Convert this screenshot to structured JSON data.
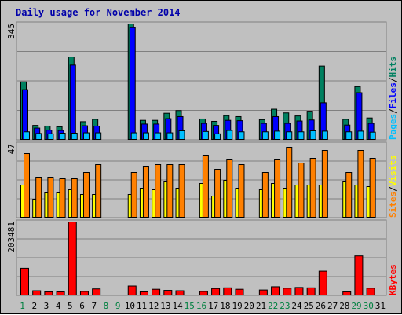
{
  "chart_data": [
    {
      "type": "bar",
      "title": "Daily usage for November 2014",
      "panel": "pages-files-hits",
      "ylabel_max": "345",
      "legend": [
        "Pages",
        "/",
        "Files",
        "/",
        "Hits"
      ],
      "legend_colors": [
        "#00c0ff",
        "#000000",
        "#0000ff",
        "#000000",
        "#008060"
      ],
      "ymax": 345,
      "categories": [
        "1",
        "2",
        "3",
        "4",
        "5",
        "6",
        "7",
        "8",
        "9",
        "10",
        "11",
        "12",
        "13",
        "14",
        "15",
        "16",
        "17",
        "18",
        "19",
        "20",
        "21",
        "22",
        "23",
        "24",
        "25",
        "26",
        "27",
        "28",
        "29",
        "30",
        "31"
      ],
      "series": [
        {
          "name": "Hits",
          "color": "#008060",
          "values": [
            173,
            44,
            42,
            40,
            247,
            55,
            62,
            0,
            0,
            345,
            59,
            59,
            80,
            88,
            0,
            63,
            56,
            73,
            70,
            0,
            61,
            92,
            81,
            72,
            86,
            220,
            0,
            62,
            159,
            66,
            0
          ]
        },
        {
          "name": "Files",
          "color": "#0000ff",
          "values": [
            150,
            36,
            30,
            29,
            223,
            43,
            42,
            0,
            0,
            334,
            48,
            48,
            64,
            70,
            0,
            50,
            44,
            59,
            58,
            0,
            50,
            70,
            50,
            57,
            60,
            111,
            0,
            45,
            141,
            50,
            0
          ]
        },
        {
          "name": "Pages",
          "color": "#00c0ff",
          "values": [
            25,
            20,
            19,
            21,
            21,
            22,
            22,
            0,
            0,
            22,
            22,
            22,
            22,
            28,
            0,
            26,
            19,
            29,
            25,
            0,
            25,
            27,
            25,
            25,
            28,
            27,
            0,
            25,
            27,
            24,
            0
          ]
        }
      ]
    },
    {
      "type": "bar",
      "panel": "visits-sites",
      "ylabel_max": "47",
      "legend": [
        "Sites",
        "/",
        "Visits"
      ],
      "legend_colors": [
        "#ff8000",
        "#000000",
        "#ffff00"
      ],
      "ymax": 47,
      "categories": [
        "1",
        "2",
        "3",
        "4",
        "5",
        "6",
        "7",
        "8",
        "9",
        "10",
        "11",
        "12",
        "13",
        "14",
        "15",
        "16",
        "17",
        "18",
        "19",
        "20",
        "21",
        "22",
        "23",
        "24",
        "25",
        "26",
        "27",
        "28",
        "29",
        "30",
        "31"
      ],
      "series": [
        {
          "name": "Visits",
          "color": "#ffff00",
          "values": [
            21,
            12,
            16,
            16,
            18,
            15,
            15,
            0,
            0,
            15,
            19,
            18,
            23,
            19,
            0,
            22,
            14,
            24,
            19,
            0,
            18,
            22,
            19,
            21,
            21,
            21,
            0,
            23,
            21,
            20,
            0
          ]
        },
        {
          "name": "Sites",
          "color": "#ff8000",
          "values": [
            41,
            26,
            26,
            25,
            25,
            29,
            34,
            0,
            0,
            29,
            33,
            34,
            34,
            34,
            0,
            40,
            31,
            37,
            34,
            0,
            29,
            37,
            45,
            35,
            38,
            43,
            0,
            29,
            43,
            38,
            0
          ]
        }
      ]
    },
    {
      "type": "bar",
      "panel": "kbytes",
      "ylabel_max": "203481",
      "legend": [
        "KBytes"
      ],
      "legend_colors": [
        "#ff0000"
      ],
      "ymax": 203481,
      "categories": [
        "1",
        "2",
        "3",
        "4",
        "5",
        "6",
        "7",
        "8",
        "9",
        "10",
        "11",
        "12",
        "13",
        "14",
        "15",
        "16",
        "17",
        "18",
        "19",
        "20",
        "21",
        "22",
        "23",
        "24",
        "25",
        "26",
        "27",
        "28",
        "29",
        "30",
        "31"
      ],
      "series": [
        {
          "name": "KBytes",
          "color": "#ff0000",
          "values": [
            76000,
            14000,
            11000,
            11000,
            203481,
            12000,
            19000,
            0,
            0,
            27000,
            11000,
            18000,
            15000,
            14000,
            0,
            12000,
            20000,
            22000,
            18000,
            0,
            16000,
            25000,
            21000,
            23000,
            22000,
            68000,
            0,
            11000,
            110000,
            21000,
            0
          ]
        }
      ]
    }
  ],
  "x_labels": [
    "1",
    "2",
    "3",
    "4",
    "5",
    "6",
    "7",
    "8",
    "9",
    "10",
    "11",
    "12",
    "13",
    "14",
    "15",
    "16",
    "17",
    "18",
    "19",
    "20",
    "21",
    "22",
    "23",
    "24",
    "25",
    "26",
    "27",
    "28",
    "29",
    "30",
    "31"
  ],
  "weekend_days": [
    1,
    8,
    9,
    15,
    16,
    22,
    23,
    29,
    30
  ],
  "colors": {
    "weekday_label": "#000000",
    "weekend_label": "#008040",
    "background": "#c0c0c0",
    "panel_edge": "#808080",
    "grid": "#808080"
  }
}
